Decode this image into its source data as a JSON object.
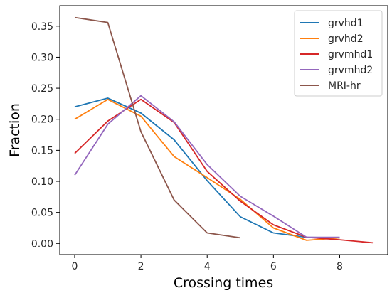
{
  "chart_data": {
    "type": "line",
    "xlabel": "Crossing times",
    "ylabel": "Fraction",
    "xlim": [
      -0.45,
      9.45
    ],
    "ylim": [
      -0.018,
      0.383
    ],
    "xticks": [
      0,
      2,
      4,
      6,
      8
    ],
    "yticks": [
      0.0,
      0.05,
      0.1,
      0.15,
      0.2,
      0.25,
      0.3,
      0.35
    ],
    "xtick_labels": [
      "0",
      "2",
      "4",
      "6",
      "8"
    ],
    "ytick_labels": [
      "0.00",
      "0.05",
      "0.10",
      "0.15",
      "0.20",
      "0.25",
      "0.30",
      "0.35"
    ],
    "grid": false,
    "legend_position": "top-right",
    "series": [
      {
        "name": "grvhd1",
        "color": "#1f77b4",
        "x": [
          0,
          1,
          2,
          3,
          4,
          5,
          6,
          7,
          8
        ],
        "y": [
          0.22,
          0.234,
          0.21,
          0.167,
          0.101,
          0.043,
          0.017,
          0.01,
          0.009
        ]
      },
      {
        "name": "grvhd2",
        "color": "#ff7f0e",
        "x": [
          0,
          1,
          2,
          3,
          4,
          5,
          6,
          7,
          8
        ],
        "y": [
          0.2,
          0.232,
          0.205,
          0.14,
          0.106,
          0.071,
          0.025,
          0.005,
          0.009
        ]
      },
      {
        "name": "grvmhd1",
        "color": "#d62728",
        "x": [
          0,
          1,
          2,
          3,
          4,
          5,
          6,
          7,
          8,
          9
        ],
        "y": [
          0.145,
          0.197,
          0.232,
          0.195,
          0.116,
          0.068,
          0.03,
          0.01,
          0.006,
          0.001
        ]
      },
      {
        "name": "grvmhd2",
        "color": "#9467bd",
        "x": [
          0,
          1,
          2,
          3,
          4,
          5,
          6,
          7,
          8
        ],
        "y": [
          0.11,
          0.192,
          0.238,
          0.196,
          0.127,
          0.076,
          0.044,
          0.01,
          0.01
        ]
      },
      {
        "name": "MRI-hr",
        "color": "#8c564b",
        "x": [
          0,
          1,
          2,
          3,
          4,
          5
        ],
        "y": [
          0.364,
          0.356,
          0.18,
          0.07,
          0.017,
          0.009
        ]
      }
    ]
  }
}
